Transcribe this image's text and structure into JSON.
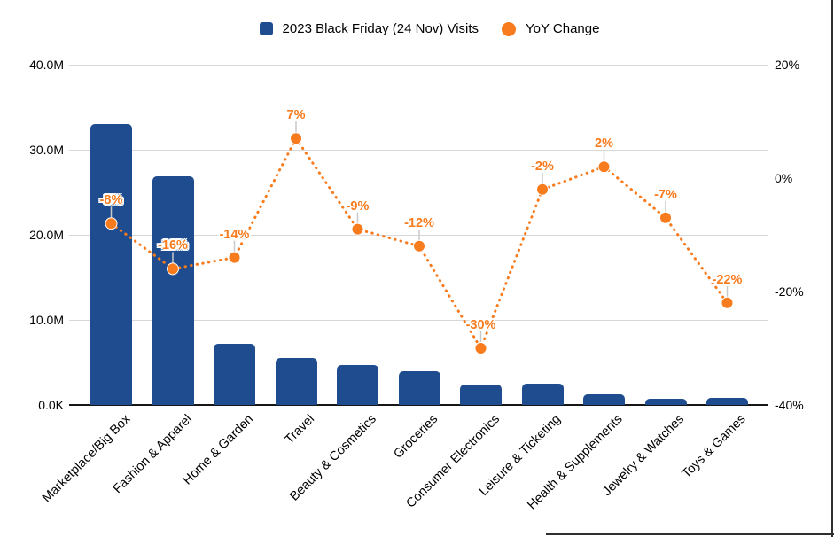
{
  "legend": {
    "items": [
      {
        "label": "2023 Black Friday (24 Nov) Visits",
        "shape": "square"
      },
      {
        "label": "YoY Change",
        "shape": "circle"
      }
    ]
  },
  "colors": {
    "bar_blue": "#1F4C8F",
    "line_orange": "#F87B1D",
    "gridline": "#D8D8D8",
    "axis_line": "#161616",
    "leader_line": "#C9C9C9",
    "text": "#000000"
  },
  "chart_data": {
    "type": "bar",
    "subtype": "combo-bar-with-dotted-line",
    "title": "",
    "legend_position": "top",
    "grid": "horizontal",
    "categories": [
      "Marketplace/Big Box",
      "Fashion & Apparel",
      "Home & Garden",
      "Travel",
      "Beauty & Cosmetics",
      "Groceries",
      "Consumer Electronics",
      "Leisure & Ticketing",
      "Health & Supplements",
      "Jewelry & Watches",
      "Toys & Games"
    ],
    "series": [
      {
        "name": "2023 Black Friday (24 Nov) Visits",
        "type": "bar",
        "axis": "left",
        "unit": "visits",
        "values_millions": [
          33.0,
          26.9,
          7.2,
          5.5,
          4.7,
          4.0,
          2.4,
          2.5,
          1.2,
          0.7,
          0.8
        ]
      },
      {
        "name": "YoY Change",
        "type": "dotted-line-with-markers",
        "axis": "right",
        "unit": "percent",
        "values": [
          -8,
          -16,
          -14,
          7,
          -9,
          -12,
          -30,
          -2,
          2,
          -7,
          -22
        ],
        "labels": [
          "-8%",
          "-16%",
          "-14%",
          "7%",
          "-9%",
          "-12%",
          "-30%",
          "-2%",
          "2%",
          "-7%",
          "-22%"
        ]
      }
    ],
    "left_axis": {
      "ticks": [
        "40.0M",
        "30.0M",
        "20.0M",
        "10.0M",
        "0.0K"
      ],
      "tick_values_millions": [
        40,
        30,
        20,
        10,
        0
      ],
      "range_millions": [
        0,
        40
      ]
    },
    "right_axis": {
      "ticks": [
        "20%",
        "0%",
        "-20%",
        "-40%"
      ],
      "tick_values": [
        20,
        0,
        -20,
        -40
      ],
      "range": [
        -40,
        20
      ]
    }
  }
}
